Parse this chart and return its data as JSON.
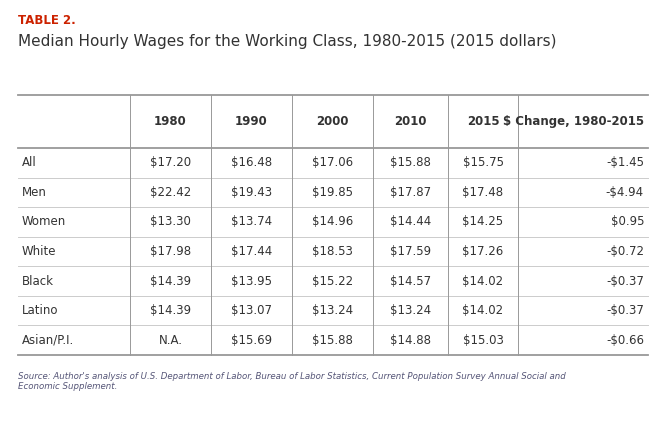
{
  "table_label": "TABLE 2.",
  "title": "Median Hourly Wages for the Working Class, 1980-2015 (2015 dollars)",
  "columns": [
    "",
    "1980",
    "1990",
    "2000",
    "2010",
    "2015",
    "$ Change, 1980-2015"
  ],
  "rows": [
    [
      "All",
      "$17.20",
      "$16.48",
      "$17.06",
      "$15.88",
      "$15.75",
      "-$1.45"
    ],
    [
      "Men",
      "$22.42",
      "$19.43",
      "$19.85",
      "$17.87",
      "$17.48",
      "-$4.94"
    ],
    [
      "Women",
      "$13.30",
      "$13.74",
      "$14.96",
      "$14.44",
      "$14.25",
      "$0.95"
    ],
    [
      "White",
      "$17.98",
      "$17.44",
      "$18.53",
      "$17.59",
      "$17.26",
      "-$0.72"
    ],
    [
      "Black",
      "$14.39",
      "$13.95",
      "$15.22",
      "$14.57",
      "$14.02",
      "-$0.37"
    ],
    [
      "Latino",
      "$14.39",
      "$13.07",
      "$13.24",
      "$13.24",
      "$14.02",
      "-$0.37"
    ],
    [
      "Asian/P.I.",
      "N.A.",
      "$15.69",
      "$15.88",
      "$14.88",
      "$15.03",
      "-$0.66"
    ]
  ],
  "source_text": "Source: Author's analysis of U.S. Department of Labor, Bureau of Labor Statistics, Current Population Survey Annual Social and\nEconomic Supplement.",
  "table_label_color": "#cc2200",
  "header_line_color": "#999999",
  "row_line_color": "#cccccc",
  "background_color": "#ffffff",
  "text_color": "#333333",
  "source_text_color": "#555577"
}
